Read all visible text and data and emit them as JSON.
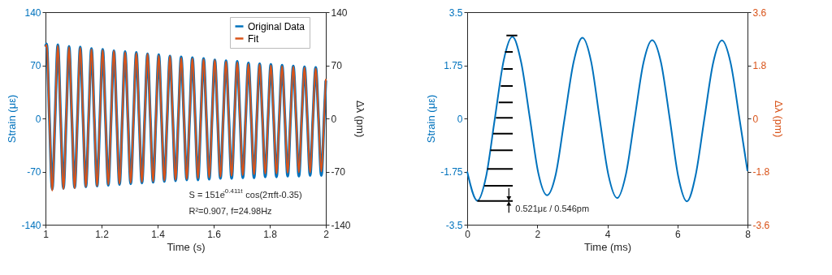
{
  "chart_data": [
    {
      "type": "line",
      "xlabel": "Time (s)",
      "ylabel": "Strain (με)",
      "y2label": "Δλ (pm)",
      "xlim": [
        1,
        2
      ],
      "xticks": [
        1,
        1.2,
        1.4,
        1.6,
        1.8,
        2
      ],
      "ylim": [
        -140,
        140
      ],
      "yticks": [
        -140,
        -70,
        0,
        70,
        140
      ],
      "y2lim": [
        -140,
        140
      ],
      "y2ticks": [
        -140,
        -70,
        0,
        70,
        140
      ],
      "legend": "top right",
      "grid": false,
      "x": [
        1.0,
        1.004,
        1.014,
        1.024,
        1.034,
        1.044,
        1.054,
        1.064,
        1.074,
        1.084,
        1.094,
        1.104,
        1.114,
        1.124,
        1.134,
        1.144,
        1.154,
        1.164,
        1.174,
        1.184,
        1.194,
        1.204,
        1.214,
        1.224,
        1.234,
        1.244,
        1.254,
        1.264,
        1.274,
        1.284,
        1.294,
        1.304,
        1.314,
        1.324,
        1.334,
        1.344,
        1.354,
        1.364,
        1.374,
        1.384,
        1.394,
        1.404,
        1.414,
        1.424,
        1.434,
        1.444,
        1.454,
        1.464,
        1.474,
        1.484,
        1.494,
        1.504,
        1.514,
        1.524,
        1.534,
        1.544,
        1.554,
        1.564,
        1.574,
        1.584,
        1.594,
        1.604,
        1.614,
        1.624,
        1.634,
        1.644,
        1.654,
        1.664,
        1.674,
        1.684,
        1.694,
        1.704,
        1.714,
        1.724,
        1.734,
        1.744,
        1.754,
        1.764,
        1.774,
        1.784,
        1.794,
        1.804,
        1.814,
        1.824,
        1.834,
        1.844,
        1.854,
        1.864,
        1.874,
        1.884,
        1.894,
        1.904,
        1.914,
        1.924,
        1.934,
        1.944,
        1.954,
        1.964,
        1.974,
        1.984,
        1.994,
        2.0
      ],
      "series": [
        {
          "name": "Original Data",
          "color": "#0072bd",
          "values": [
            95,
            98,
            0,
            -93,
            0,
            97,
            0,
            -92,
            0,
            95,
            0,
            -91,
            0,
            94,
            0,
            -90,
            0,
            92,
            0,
            -89,
            0,
            91,
            0,
            -88,
            0,
            89,
            0,
            -87,
            0,
            88,
            0,
            -86,
            0,
            87,
            0,
            -85,
            0,
            85,
            0,
            -84,
            0,
            84,
            0,
            -83,
            0,
            82,
            0,
            -82,
            0,
            81,
            0,
            -81,
            0,
            80,
            0,
            -81,
            0,
            79,
            0,
            -80,
            0,
            77,
            0,
            -79,
            0,
            76,
            0,
            -79,
            0,
            75,
            0,
            -78,
            0,
            73,
            0,
            -78,
            0,
            72,
            0,
            -77,
            0,
            71,
            0,
            -77,
            0,
            70,
            0,
            -76,
            0,
            69,
            0,
            -76,
            0,
            68,
            0,
            -75,
            0,
            67,
            0,
            -75,
            0,
            50
          ]
        },
        {
          "name": "Fit",
          "color": "#d95319",
          "values": [
            94,
            97,
            0,
            -95,
            0,
            96,
            0,
            -93,
            0,
            94,
            0,
            -92,
            0,
            93,
            0,
            -90,
            0,
            91,
            0,
            -89,
            0,
            90,
            0,
            -87,
            0,
            89,
            0,
            -86,
            0,
            87,
            0,
            -85,
            0,
            86,
            0,
            -84,
            0,
            85,
            0,
            -83,
            0,
            83,
            0,
            -82,
            0,
            82,
            0,
            -81,
            0,
            80,
            0,
            -80,
            0,
            79,
            0,
            -79,
            0,
            78,
            0,
            -78,
            0,
            77,
            0,
            -77,
            0,
            75,
            0,
            -76,
            0,
            74,
            0,
            -75,
            0,
            72,
            0,
            -74,
            0,
            71,
            0,
            -73,
            0,
            70,
            0,
            -73,
            0,
            69,
            0,
            -72,
            0,
            68,
            0,
            -71,
            0,
            67,
            0,
            -71,
            0,
            66,
            0,
            -70,
            0,
            52
          ]
        }
      ],
      "annotations": [
        "S = 151e$^{-0.411t}$ cos(2πft-0.35)",
        "R²=0.907, f=24.98Hz"
      ]
    },
    {
      "type": "line",
      "xlabel": "Time (ms)",
      "ylabel": "Strain (με)",
      "y2label": "Δλ (pm)",
      "xlim": [
        0,
        8
      ],
      "xticks": [
        0,
        2,
        4,
        6,
        8
      ],
      "ylim": [
        -3.5,
        3.5
      ],
      "yticks": [
        -3.5,
        -1.75,
        0,
        1.75,
        3.5
      ],
      "y2lim": [
        -3.6,
        3.6
      ],
      "y2ticks": [
        -3.6,
        -1.8,
        0,
        1.8,
        3.6
      ],
      "grid": false,
      "series": [
        {
          "color": "#0072bd",
          "x": [
            0,
            0.29,
            0.54,
            0.79,
            1.04,
            1.29,
            1.54,
            1.79,
            2.03,
            2.28,
            2.53,
            2.78,
            3.04,
            3.29,
            3.54,
            3.78,
            4.03,
            4.28,
            4.53,
            4.78,
            5.03,
            5.28,
            5.53,
            5.78,
            6.02,
            6.27,
            6.52,
            6.77,
            7.02,
            7.27,
            7.52,
            7.77,
            8.0
          ],
          "values": [
            -1.75,
            -2.71,
            -1.91,
            0,
            1.9,
            2.69,
            1.85,
            0,
            -1.8,
            -2.53,
            -1.83,
            0,
            1.87,
            2.66,
            1.86,
            0,
            -1.86,
            -2.62,
            -1.84,
            0,
            1.83,
            2.58,
            1.85,
            0,
            -1.89,
            -2.73,
            -1.87,
            0,
            1.83,
            2.57,
            1.82,
            0,
            -1.73
          ]
        },
        {
          "color": "#000000",
          "x": [
            0.29,
            1.3,
            null,
            0.49,
            1.3,
            null,
            0.57,
            1.3,
            null,
            0.66,
            1.3,
            null,
            0.74,
            1.3,
            null,
            0.82,
            1.3,
            null,
            0.9,
            1.3,
            null,
            0.96,
            1.3,
            null,
            1.03,
            1.3,
            null,
            1.08,
            1.3,
            null,
            1.12,
            1.43
          ],
          "values": [
            -2.72,
            -2.72,
            null,
            -2.22,
            -2.22,
            null,
            -1.66,
            -1.66,
            null,
            -1.05,
            -1.05,
            null,
            -0.5,
            -0.5,
            null,
            0.02,
            0.02,
            null,
            0.53,
            0.53,
            null,
            1.07,
            1.07,
            null,
            1.63,
            1.63,
            null,
            2.19,
            2.19,
            null,
            2.73,
            2.73
          ]
        }
      ],
      "annotations": [
        "0.521με / 0.546pm"
      ]
    }
  ]
}
